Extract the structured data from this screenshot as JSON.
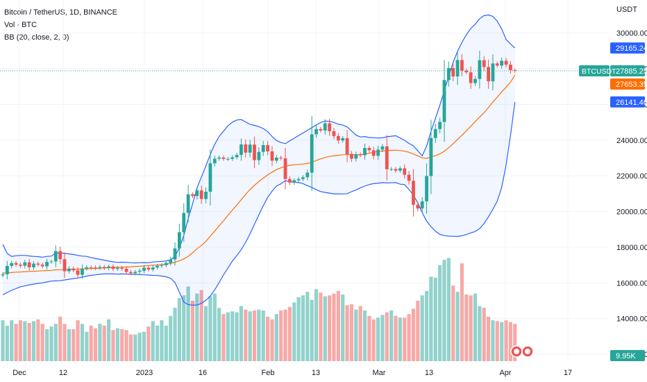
{
  "legend": {
    "title": "Bitcoin / TetherUS, 1D, BINANCE",
    "volume": "Vol · BTC",
    "indicator": "BB (20, close, 2, 0)"
  },
  "chart_data": {
    "type": "candlestick",
    "price_axis_title": "USDT",
    "ylim": [
      12000,
      31700
    ],
    "y_ticks": [
      "30000.00",
      "28000.00",
      "26000.00",
      "24000.00",
      "22000.00",
      "20000.00",
      "18000.00",
      "16000.00",
      "14000.00",
      "12000.00"
    ],
    "x_ticks": [
      "Dec",
      "12",
      "2023",
      "16",
      "Feb",
      "13",
      "Mar",
      "13",
      "Apr",
      "17"
    ],
    "symbol": "BTCUSDT",
    "last_price": "27885.25",
    "bb_upper": "29165.24",
    "bb_basis": "27653.35",
    "bb_lower": "26141.46",
    "volume_last": "9.95K",
    "closes": [
      16480,
      16950,
      17110,
      17020,
      16960,
      17150,
      16870,
      17080,
      17020,
      16930,
      17180,
      17200,
      17780,
      17330,
      16650,
      16800,
      16700,
      16450,
      16800,
      16870,
      16860,
      16830,
      16890,
      16830,
      16920,
      16780,
      16840,
      16790,
      16610,
      16540,
      16620,
      16680,
      16850,
      16750,
      16860,
      16950,
      16990,
      17120,
      17310,
      17930,
      18840,
      19920,
      20960,
      20870,
      21180,
      20700,
      21110,
      22700,
      22960,
      23030,
      22950,
      22950,
      23040,
      23170,
      23760,
      23300,
      23750,
      22880,
      23340,
      23720,
      23370,
      22850,
      23020,
      22980,
      21820,
      21620,
      21750,
      21820,
      21920,
      22180,
      24330,
      24620,
      24540,
      24940,
      24500,
      24230,
      23980,
      24110,
      23220,
      22960,
      23190,
      23150,
      23560,
      23430,
      23120,
      23470,
      23650,
      22370,
      22380,
      22290,
      22420,
      22060,
      21720,
      20380,
      20170,
      20570,
      21990,
      24120,
      24620,
      25020,
      27370,
      28040,
      27570,
      28490,
      27900,
      27800,
      27200,
      27430,
      28480,
      28100,
      27300,
      28300,
      28180,
      28450,
      28230,
      27920,
      27885
    ],
    "bb_upper_series": [
      18160,
      17650,
      17480,
      17520,
      17540,
      17540,
      17510,
      17480,
      17470,
      17440,
      17480,
      17500,
      17670,
      17680,
      17660,
      17620,
      17590,
      17540,
      17500,
      17480,
      17420,
      17370,
      17320,
      17270,
      17220,
      17180,
      17150,
      17160,
      17150,
      17130,
      17120,
      17130,
      17140,
      17130,
      17170,
      17190,
      17200,
      17230,
      17290,
      17490,
      17960,
      18670,
      19600,
      20440,
      21330,
      21940,
      22560,
      23200,
      23770,
      24200,
      24510,
      24800,
      25010,
      25130,
      25160,
      25020,
      24890,
      24830,
      24760,
      24650,
      24480,
      24200,
      23980,
      23870,
      23800,
      23960,
      24110,
      24260,
      24400,
      24550,
      24700,
      24850,
      24990,
      25070,
      25060,
      24990,
      24890,
      24850,
      24740,
      24520,
      24280,
      24180,
      24200,
      24150,
      24140,
      24120,
      24130,
      24190,
      24220,
      24250,
      24120,
      23990,
      23820,
      23680,
      23400,
      23120,
      23680,
      24500,
      25230,
      25960,
      26770,
      27570,
      28360,
      28980,
      29480,
      29910,
      30260,
      30500,
      30810,
      30980,
      31020,
      30940,
      30670,
      30230,
      29650,
      29390,
      29165
    ],
    "bb_basis_series": [
      16550,
      16560,
      16580,
      16600,
      16610,
      16630,
      16640,
      16650,
      16660,
      16680,
      16690,
      16700,
      16730,
      16740,
      16740,
      16750,
      16760,
      16770,
      16780,
      16790,
      16800,
      16810,
      16820,
      16830,
      16850,
      16860,
      16870,
      16880,
      16890,
      16900,
      16920,
      16930,
      16950,
      16970,
      16990,
      17000,
      17020,
      17050,
      17090,
      17160,
      17240,
      17340,
      17490,
      17690,
      17910,
      18100,
      18330,
      18620,
      18900,
      19190,
      19480,
      19790,
      20080,
      20360,
      20660,
      20960,
      21230,
      21470,
      21680,
      21870,
      22050,
      22210,
      22350,
      22450,
      22520,
      22590,
      22620,
      22640,
      22660,
      22690,
      22760,
      22860,
      22950,
      23030,
      23090,
      23120,
      23150,
      23180,
      23200,
      23190,
      23190,
      23190,
      23220,
      23270,
      23320,
      23360,
      23390,
      23420,
      23430,
      23440,
      23420,
      23380,
      23320,
      23220,
      23120,
      23010,
      22980,
      23060,
      23130,
      23230,
      23380,
      23580,
      23800,
      24040,
      24270,
      24520,
      24780,
      25040,
      25300,
      25530,
      25830,
      26140,
      26410,
      26710,
      26960,
      27250,
      27653
    ],
    "bb_lower_series": [
      15330,
      15460,
      15580,
      15680,
      15780,
      15830,
      15890,
      15930,
      15970,
      16000,
      16050,
      16100,
      16110,
      16120,
      16160,
      16200,
      16240,
      16270,
      16320,
      16380,
      16420,
      16450,
      16480,
      16500,
      16500,
      16500,
      16490,
      16500,
      16490,
      16480,
      16480,
      16460,
      16450,
      16440,
      16420,
      16410,
      16380,
      16340,
      16260,
      16020,
      15480,
      14920,
      14780,
      14750,
      14760,
      14850,
      15020,
      15260,
      15610,
      16010,
      16450,
      16830,
      17220,
      17530,
      17850,
      18270,
      18750,
      19280,
      19810,
      20320,
      20790,
      21140,
      21430,
      21550,
      21720,
      21680,
      21640,
      21620,
      21560,
      21450,
      21350,
      21220,
      21120,
      21070,
      21030,
      20990,
      20990,
      20980,
      21000,
      21110,
      21210,
      21330,
      21420,
      21510,
      21560,
      21580,
      21620,
      21600,
      21610,
      21620,
      21530,
      21510,
      21240,
      20920,
      20480,
      19940,
      19460,
      19150,
      18890,
      18720,
      18650,
      18620,
      18610,
      18600,
      18640,
      18710,
      18800,
      18880,
      19040,
      19320,
      19700,
      20120,
      20590,
      21350,
      22600,
      24270,
      26141
    ],
    "volume_series": [
      0.46,
      0.4,
      0.46,
      0.42,
      0.46,
      0.45,
      0.43,
      0.45,
      0.47,
      0.42,
      0.36,
      0.39,
      0.42,
      0.5,
      0.42,
      0.36,
      0.36,
      0.46,
      0.42,
      0.33,
      0.4,
      0.37,
      0.42,
      0.4,
      0.47,
      0.35,
      0.37,
      0.36,
      0.35,
      0.3,
      0.3,
      0.32,
      0.33,
      0.39,
      0.45,
      0.4,
      0.46,
      0.4,
      0.51,
      0.6,
      0.71,
      0.74,
      0.84,
      0.68,
      0.76,
      0.8,
      0.62,
      0.73,
      0.76,
      0.6,
      0.53,
      0.55,
      0.56,
      0.55,
      0.62,
      0.58,
      0.56,
      0.57,
      0.58,
      0.57,
      0.5,
      0.47,
      0.53,
      0.57,
      0.58,
      0.61,
      0.66,
      0.72,
      0.74,
      0.78,
      0.69,
      0.81,
      0.77,
      0.73,
      0.74,
      0.76,
      0.79,
      0.75,
      0.63,
      0.64,
      0.58,
      0.62,
      0.57,
      0.51,
      0.47,
      0.49,
      0.52,
      0.55,
      0.57,
      0.51,
      0.49,
      0.49,
      0.53,
      0.59,
      0.68,
      0.74,
      0.79,
      0.95,
      0.94,
      1.08,
      1.14,
      1.16,
      0.85,
      0.78,
      1.1,
      0.75,
      0.74,
      0.76,
      0.62,
      0.6,
      0.5,
      0.46,
      0.45,
      0.44,
      0.46,
      0.44,
      0.42
    ],
    "volume_colors": "green = up day, red = down day"
  }
}
